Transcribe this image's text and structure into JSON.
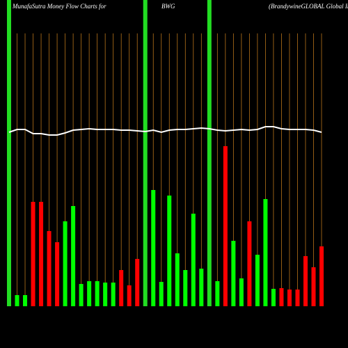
{
  "chart_data": {
    "type": "bar",
    "title": "MunafaSutra  Money Flow  Charts for",
    "symbol": "BWG",
    "subtitle": "(BrandywineGLOBAL  Global In",
    "categories": [
      null,
      null,
      null,
      null,
      null,
      null,
      null,
      null,
      null,
      null,
      null,
      null,
      null,
      null,
      null,
      null,
      null,
      null,
      null,
      null,
      null,
      null,
      null,
      null,
      null,
      null,
      null,
      null,
      null,
      null,
      null,
      null,
      null,
      null,
      null,
      null,
      null,
      null,
      null,
      null
    ],
    "values": [
      null,
      16,
      16,
      150,
      150,
      108,
      92,
      122,
      144,
      32,
      36,
      36,
      34,
      34,
      52,
      30,
      68,
      null,
      167,
      35,
      159,
      76,
      52,
      133,
      54,
      null,
      36,
      230,
      94,
      40,
      122,
      74,
      154,
      25,
      26,
      24,
      24,
      72,
      56,
      86
    ],
    "colors": [
      null,
      "#00ff00",
      "#00ff00",
      "#ff0000",
      "#ff0000",
      "#ff0000",
      "#ff0000",
      "#00ff00",
      "#00ff00",
      "#00ff00",
      "#00ff00",
      "#00ff00",
      "#00ff00",
      "#00ff00",
      "#ff0000",
      "#ff0000",
      "#ff0000",
      null,
      "#00ff00",
      "#00ff00",
      "#00ff00",
      "#00ff00",
      "#00ff00",
      "#00ff00",
      "#00ff00",
      null,
      "#00ff00",
      "#ff0000",
      "#00ff00",
      "#00ff00",
      "#ff0000",
      "#00ff00",
      "#00ff00",
      "#00ff00",
      "#ff0000",
      "#ff0000",
      "#ff0000",
      "#ff0000",
      "#ff0000",
      "#ff0000"
    ],
    "line_values": [
      250,
      254,
      254,
      248,
      248,
      246,
      246,
      249,
      253,
      254,
      255,
      254,
      254,
      254,
      253,
      253,
      252,
      251,
      253,
      250,
      253,
      254,
      254,
      255,
      256,
      255,
      253,
      252,
      253,
      254,
      253,
      254,
      258,
      258,
      255,
      254,
      254,
      254,
      253,
      250
    ],
    "line_color": "#ffffff",
    "ylim": [
      0,
      440
    ]
  }
}
